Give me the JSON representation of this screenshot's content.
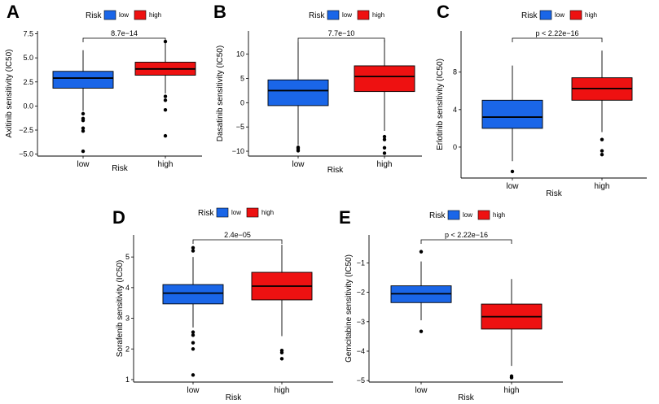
{
  "colors": {
    "low": "#1a66e8",
    "high": "#ee1111",
    "axis": "#000000"
  },
  "chart_data": [
    {
      "panel": "A",
      "type": "boxplot",
      "legend": {
        "title": "Risk",
        "items": [
          "low",
          "high"
        ]
      },
      "xlabel": "Risk",
      "ylabel": "Axitinib sensitivity (IC50)",
      "categories": [
        "low",
        "high"
      ],
      "ylim": [
        -5.2,
        7.8
      ],
      "yticks": [
        -5.0,
        -2.5,
        0.0,
        2.5,
        5.0,
        7.5
      ],
      "ytick_labels": [
        "−5.0",
        "−2.5",
        "0.0",
        "2.5",
        "5.0",
        "7.5"
      ],
      "significance": "8.7e−14",
      "boxes": [
        {
          "group": "low",
          "whisker_low": -0.5,
          "q1": 1.85,
          "median": 2.9,
          "q3": 3.6,
          "whisker_high": 5.8,
          "outliers": [
            -0.8,
            -1.3,
            -1.5,
            -2.3,
            -2.6,
            -4.7
          ]
        },
        {
          "group": "high",
          "whisker_low": 1.3,
          "q1": 3.2,
          "median": 3.85,
          "q3": 4.55,
          "whisker_high": 6.6,
          "outliers": [
            6.7,
            1.0,
            0.6,
            -0.4,
            -3.1
          ]
        }
      ]
    },
    {
      "panel": "B",
      "type": "boxplot",
      "legend": {
        "title": "Risk",
        "items": [
          "low",
          "high"
        ]
      },
      "xlabel": "Risk",
      "ylabel": "Dasatinib sensitivity (IC50)",
      "categories": [
        "low",
        "high"
      ],
      "ylim": [
        -11,
        14.8
      ],
      "yticks": [
        -10,
        -5,
        0,
        5,
        10
      ],
      "ytick_labels": [
        "−10",
        "−5",
        "0",
        "5",
        "10"
      ],
      "significance": "7.7e−10",
      "boxes": [
        {
          "group": "low",
          "whisker_low": -8.7,
          "q1": -0.6,
          "median": 2.5,
          "q3": 4.7,
          "whisker_high": 12.5,
          "outliers": [
            -9.2,
            -9.5,
            -9.9
          ]
        },
        {
          "group": "high",
          "whisker_low": -5.8,
          "q1": 2.3,
          "median": 5.4,
          "q3": 7.6,
          "whisker_high": 13.0,
          "outliers": [
            -7.0,
            -7.6,
            -9.3,
            -10.4
          ]
        }
      ]
    },
    {
      "panel": "C",
      "type": "boxplot",
      "legend": {
        "title": "Risk",
        "items": [
          "low",
          "high"
        ]
      },
      "xlabel": "Risk",
      "ylabel": "Erlotinib sensitivity (IC50)",
      "categories": [
        "low",
        "high"
      ],
      "ylim": [
        -3.3,
        12.4
      ],
      "yticks": [
        0,
        4,
        8
      ],
      "ytick_labels": [
        "0",
        "4",
        "8"
      ],
      "significance": "p < 2.22e−16",
      "boxes": [
        {
          "group": "low",
          "whisker_low": -1.5,
          "q1": 2.0,
          "median": 3.2,
          "q3": 5.0,
          "whisker_high": 8.7,
          "outliers": [
            -2.6
          ]
        },
        {
          "group": "high",
          "whisker_low": 1.6,
          "q1": 5.0,
          "median": 6.25,
          "q3": 7.4,
          "whisker_high": 10.3,
          "outliers": [
            0.8,
            -0.4,
            -0.8
          ]
        }
      ]
    },
    {
      "panel": "D",
      "type": "boxplot",
      "legend": {
        "title": "Risk",
        "items": [
          "low",
          "high"
        ]
      },
      "xlabel": "Risk",
      "ylabel": "Sorafenib sensitivity (IC50)",
      "categories": [
        "low",
        "high"
      ],
      "ylim": [
        0.92,
        5.72
      ],
      "yticks": [
        1,
        2,
        3,
        4,
        5
      ],
      "ytick_labels": [
        "1",
        "2",
        "3",
        "4",
        "5"
      ],
      "significance": "2.4e−05",
      "boxes": [
        {
          "group": "low",
          "whisker_low": 2.7,
          "q1": 3.47,
          "median": 3.82,
          "q3": 4.1,
          "whisker_high": 5.0,
          "outliers": [
            5.3,
            5.2,
            2.55,
            2.45,
            2.2,
            2.0,
            1.15
          ]
        },
        {
          "group": "high",
          "whisker_low": 2.42,
          "q1": 3.6,
          "median": 4.05,
          "q3": 4.5,
          "whisker_high": 5.4,
          "outliers": [
            1.95,
            1.88,
            1.68
          ]
        }
      ]
    },
    {
      "panel": "E",
      "type": "boxplot",
      "legend": {
        "title": "Risk",
        "items": [
          "low",
          "high"
        ]
      },
      "xlabel": "Risk",
      "ylabel": "Gemcitabine sensitivity (IC50)",
      "categories": [
        "low",
        "high"
      ],
      "ylim": [
        -5.05,
        -0.05
      ],
      "yticks": [
        -5,
        -4,
        -3,
        -2,
        -1
      ],
      "ytick_labels": [
        "−5",
        "−4",
        "−3",
        "−2",
        "−1"
      ],
      "significance": "p < 2.22e−16",
      "boxes": [
        {
          "group": "low",
          "whisker_low": -2.95,
          "q1": -2.35,
          "median": -2.05,
          "q3": -1.78,
          "whisker_high": -0.95,
          "outliers": [
            -0.62,
            -3.33
          ]
        },
        {
          "group": "high",
          "whisker_low": -4.5,
          "q1": -3.25,
          "median": -2.83,
          "q3": -2.4,
          "whisker_high": -1.55,
          "outliers": [
            -4.85,
            -4.9
          ]
        }
      ]
    }
  ]
}
